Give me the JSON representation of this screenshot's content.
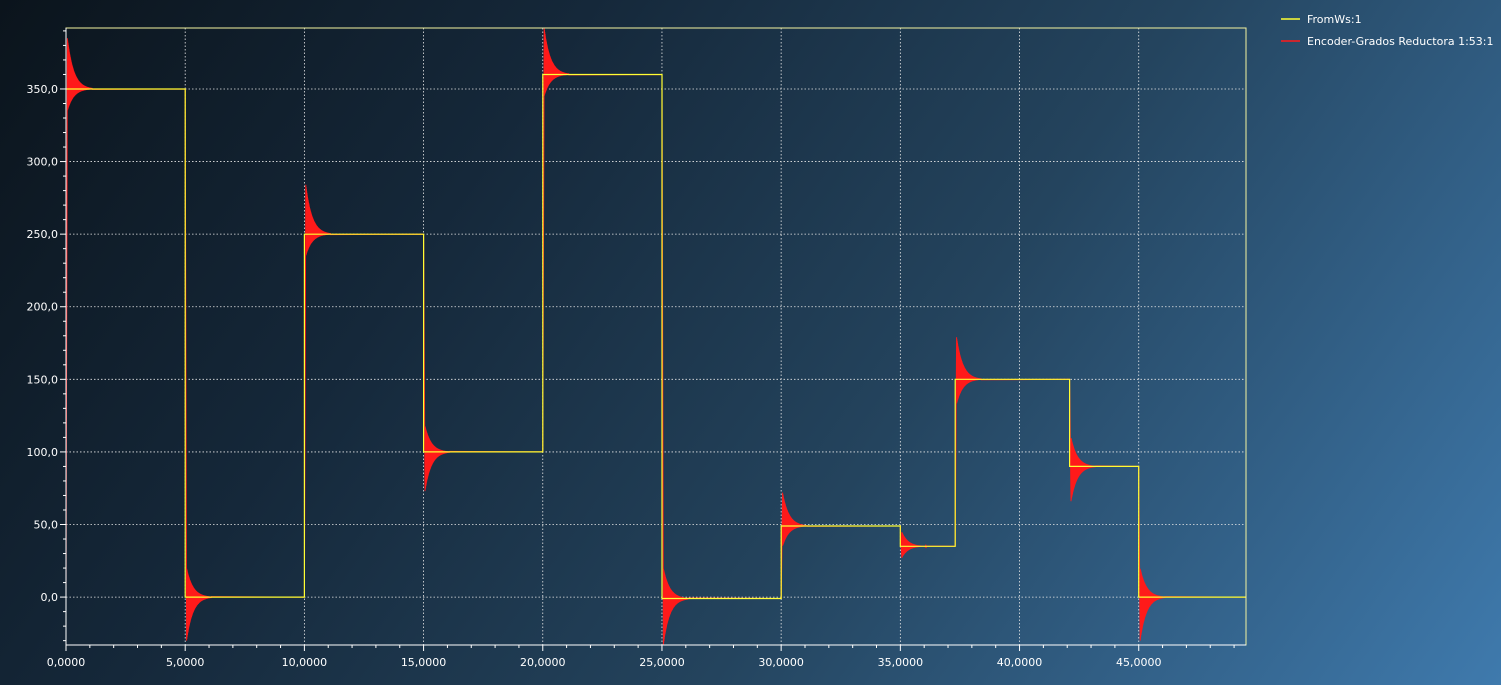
{
  "chart_data": {
    "type": "line",
    "title": "",
    "xlabel": "",
    "ylabel": "",
    "xlim": [
      0,
      49500
    ],
    "ylim": [
      -33,
      392
    ],
    "grid": true,
    "legend_position": "top-right",
    "x_ticks": [
      0,
      5000,
      10000,
      15000,
      20000,
      25000,
      30000,
      35000,
      40000,
      45000
    ],
    "x_tick_labels": [
      "0,0000",
      "5,0000",
      "10,0000",
      "15,0000",
      "20,0000",
      "25,0000",
      "30,0000",
      "35,0000",
      "40,0000",
      "45,0000"
    ],
    "y_ticks": [
      0,
      50,
      100,
      150,
      200,
      250,
      300,
      350
    ],
    "y_tick_labels": [
      "0,0",
      "50,0",
      "100,0",
      "150,0",
      "200,0",
      "250,0",
      "300,0",
      "350,0"
    ],
    "series": [
      {
        "name": "FromWs:1",
        "color": "#ffff33",
        "kind": "step",
        "segments": [
          {
            "x0": 0,
            "x1": 5000,
            "y": 350
          },
          {
            "x0": 5000,
            "x1": 10000,
            "y": 0
          },
          {
            "x0": 10000,
            "x1": 15000,
            "y": 250
          },
          {
            "x0": 15000,
            "x1": 20000,
            "y": 100
          },
          {
            "x0": 20000,
            "x1": 25000,
            "y": 360
          },
          {
            "x0": 25000,
            "x1": 30000,
            "y": -1
          },
          {
            "x0": 30000,
            "x1": 35000,
            "y": 49
          },
          {
            "x0": 35000,
            "x1": 37300,
            "y": 35
          },
          {
            "x0": 37300,
            "x1": 42100,
            "y": 150
          },
          {
            "x0": 42100,
            "x1": 45000,
            "y": 90
          },
          {
            "x0": 45000,
            "x1": 49500,
            "y": 0
          }
        ]
      },
      {
        "name": "Encoder-Grados Reductora 1:53:1",
        "color": "#ff1a1a",
        "kind": "damped-step-response",
        "segments": [
          {
            "x0": 0,
            "x1": 5000,
            "from": 0,
            "to": 350,
            "peak": 385,
            "trough": 335
          },
          {
            "x0": 5000,
            "x1": 10000,
            "from": 350,
            "to": 0,
            "peak": 20,
            "trough": -30
          },
          {
            "x0": 10000,
            "x1": 15000,
            "from": 0,
            "to": 250,
            "peak": 284,
            "trough": 235
          },
          {
            "x0": 15000,
            "x1": 20000,
            "from": 250,
            "to": 100,
            "peak": 118,
            "trough": 73
          },
          {
            "x0": 20000,
            "x1": 25000,
            "from": 100,
            "to": 360,
            "peak": 392,
            "trough": 345
          },
          {
            "x0": 25000,
            "x1": 30000,
            "from": 360,
            "to": -1,
            "peak": 20,
            "trough": -33
          },
          {
            "x0": 30000,
            "x1": 35000,
            "from": -1,
            "to": 49,
            "peak": 72,
            "trough": 35
          },
          {
            "x0": 35000,
            "x1": 37300,
            "from": 49,
            "to": 35,
            "peak": 45,
            "trough": 27
          },
          {
            "x0": 37300,
            "x1": 42100,
            "from": 35,
            "to": 150,
            "peak": 179,
            "trough": 133
          },
          {
            "x0": 42100,
            "x1": 45000,
            "from": 150,
            "to": 90,
            "peak": 110,
            "trough": 66
          },
          {
            "x0": 45000,
            "x1": 49500,
            "from": 90,
            "to": 0,
            "peak": 20,
            "trough": -30
          }
        ]
      }
    ]
  }
}
